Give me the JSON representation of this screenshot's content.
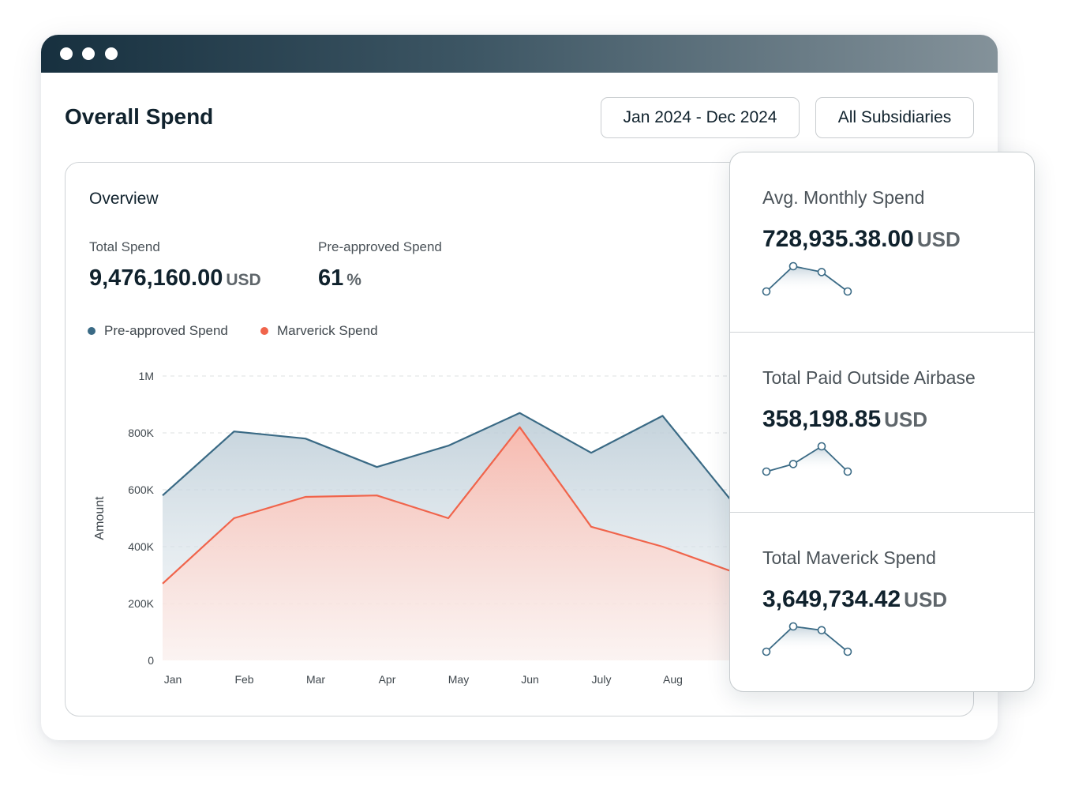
{
  "window": {
    "controls": [
      "close",
      "minimize",
      "maximize"
    ]
  },
  "header": {
    "title": "Overall Spend",
    "date_range": "Jan 2024 - Dec 2024",
    "subsidiary": "All Subsidiaries"
  },
  "overview": {
    "title": "Overview",
    "total_spend": {
      "label": "Total Spend",
      "value": "9,476,160.00",
      "unit": "USD"
    },
    "preapproved": {
      "label": "Pre-approved Spend",
      "value": "61",
      "unit": "%"
    }
  },
  "legend": [
    {
      "label": "Pre-approved Spend",
      "color": "#3a6a85"
    },
    {
      "label": "Marverick Spend",
      "color": "#f0644b"
    }
  ],
  "chart_data": {
    "type": "area",
    "ylabel": "Amount",
    "xlabel": "",
    "categories": [
      "Jan",
      "Feb",
      "Mar",
      "Apr",
      "May",
      "Jun",
      "July",
      "Aug"
    ],
    "y_tick_labels": [
      "0",
      "200K",
      "400K",
      "600K",
      "800K",
      "1M"
    ],
    "y_ticks": [
      0,
      200000,
      400000,
      600000,
      800000,
      1000000
    ],
    "ylim": [
      0,
      1000000
    ],
    "grid": true,
    "series": [
      {
        "name": "Pre-approved Spend",
        "color": "#3a6a85",
        "values": [
          580000,
          805000,
          780000,
          680000,
          755000,
          870000,
          730000,
          860000
        ],
        "continues_past_aug": 550000
      },
      {
        "name": "Marverick Spend",
        "color": "#f0644b",
        "values": [
          270000,
          500000,
          575000,
          580000,
          500000,
          820000,
          470000,
          400000
        ],
        "continues_past_aug": 310000
      }
    ]
  },
  "stats": [
    {
      "label": "Avg. Monthly Spend",
      "value": "728,935.38.00",
      "unit": "USD",
      "spark": [
        0.0,
        1.0,
        0.77,
        0.0
      ]
    },
    {
      "label": "Total Paid Outside Airbase",
      "value": "358,198.85",
      "unit": "USD",
      "spark": [
        0.0,
        0.3,
        1.0,
        0.0
      ]
    },
    {
      "label": "Total Maverick Spend",
      "value": "3,649,734.42",
      "unit": "USD",
      "spark": [
        0.0,
        1.0,
        0.85,
        0.0
      ]
    }
  ],
  "spark_color": "#3a6a85"
}
